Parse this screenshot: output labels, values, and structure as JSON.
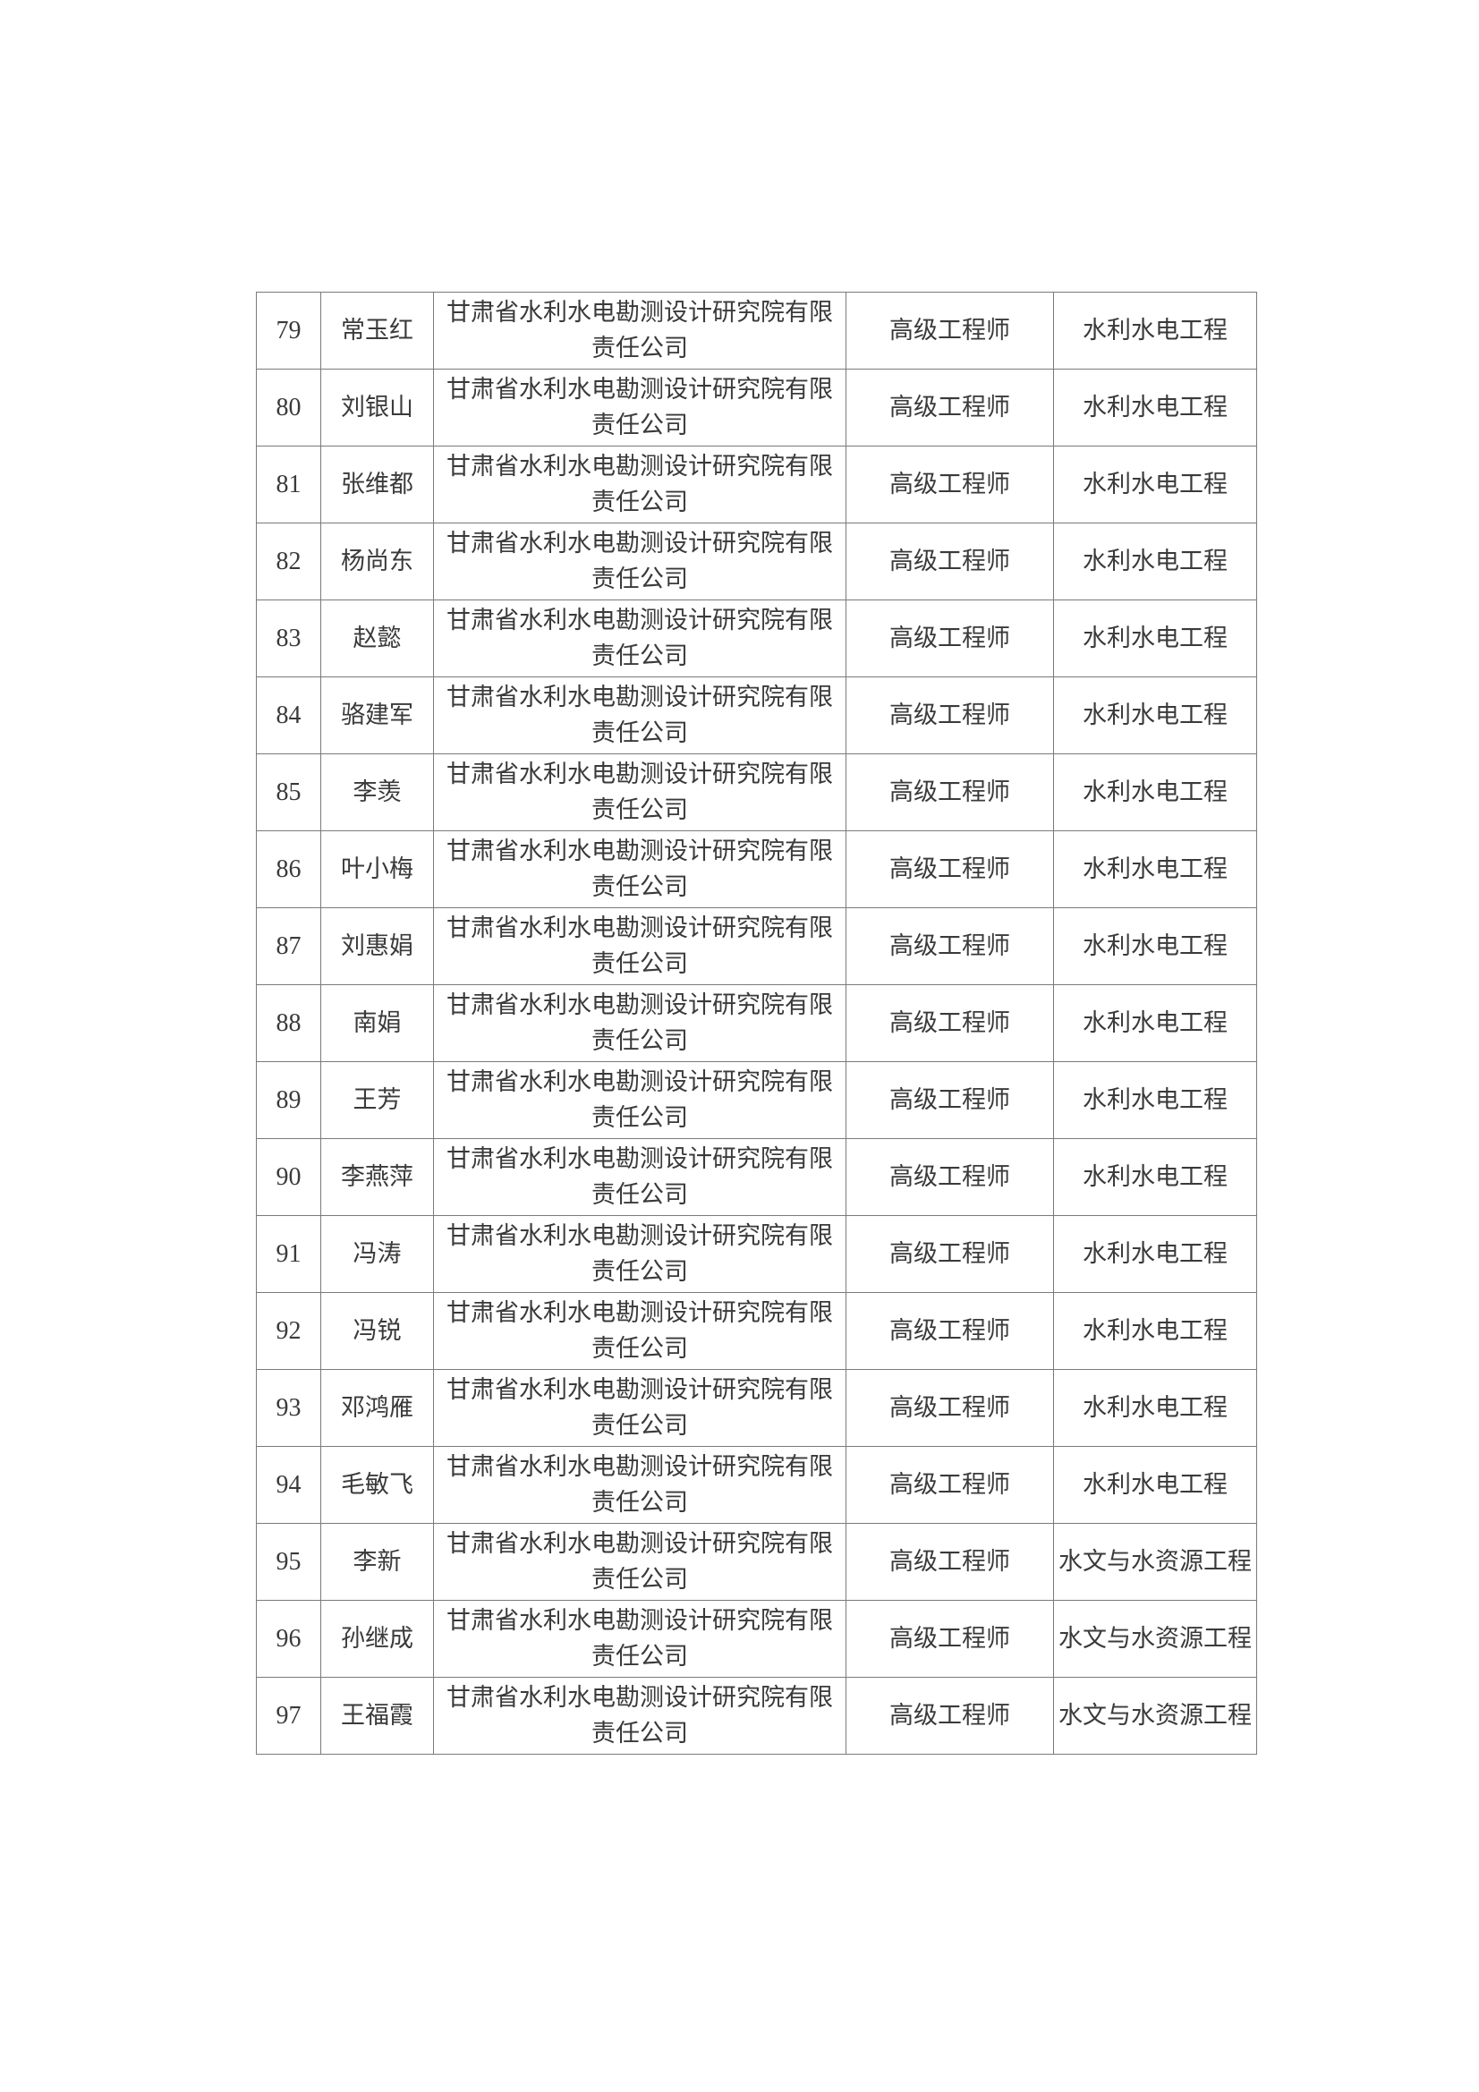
{
  "table": {
    "rows": [
      {
        "no": "79",
        "name": "常玉红",
        "org": "甘肃省水利水电勘测设计研究院有限责任公司",
        "title": "高级工程师",
        "major": "水利水电工程"
      },
      {
        "no": "80",
        "name": "刘银山",
        "org": "甘肃省水利水电勘测设计研究院有限责任公司",
        "title": "高级工程师",
        "major": "水利水电工程"
      },
      {
        "no": "81",
        "name": "张维都",
        "org": "甘肃省水利水电勘测设计研究院有限责任公司",
        "title": "高级工程师",
        "major": "水利水电工程"
      },
      {
        "no": "82",
        "name": "杨尚东",
        "org": "甘肃省水利水电勘测设计研究院有限责任公司",
        "title": "高级工程师",
        "major": "水利水电工程"
      },
      {
        "no": "83",
        "name": "赵懿",
        "org": "甘肃省水利水电勘测设计研究院有限责任公司",
        "title": "高级工程师",
        "major": "水利水电工程"
      },
      {
        "no": "84",
        "name": "骆建军",
        "org": "甘肃省水利水电勘测设计研究院有限责任公司",
        "title": "高级工程师",
        "major": "水利水电工程"
      },
      {
        "no": "85",
        "name": "李羡",
        "org": "甘肃省水利水电勘测设计研究院有限责任公司",
        "title": "高级工程师",
        "major": "水利水电工程"
      },
      {
        "no": "86",
        "name": "叶小梅",
        "org": "甘肃省水利水电勘测设计研究院有限责任公司",
        "title": "高级工程师",
        "major": "水利水电工程"
      },
      {
        "no": "87",
        "name": "刘惠娟",
        "org": "甘肃省水利水电勘测设计研究院有限责任公司",
        "title": "高级工程师",
        "major": "水利水电工程"
      },
      {
        "no": "88",
        "name": "南娟",
        "org": "甘肃省水利水电勘测设计研究院有限责任公司",
        "title": "高级工程师",
        "major": "水利水电工程"
      },
      {
        "no": "89",
        "name": "王芳",
        "org": "甘肃省水利水电勘测设计研究院有限责任公司",
        "title": "高级工程师",
        "major": "水利水电工程"
      },
      {
        "no": "90",
        "name": "李燕萍",
        "org": "甘肃省水利水电勘测设计研究院有限责任公司",
        "title": "高级工程师",
        "major": "水利水电工程"
      },
      {
        "no": "91",
        "name": "冯涛",
        "org": "甘肃省水利水电勘测设计研究院有限责任公司",
        "title": "高级工程师",
        "major": "水利水电工程"
      },
      {
        "no": "92",
        "name": "冯锐",
        "org": "甘肃省水利水电勘测设计研究院有限责任公司",
        "title": "高级工程师",
        "major": "水利水电工程"
      },
      {
        "no": "93",
        "name": "邓鸿雁",
        "org": "甘肃省水利水电勘测设计研究院有限责任公司",
        "title": "高级工程师",
        "major": "水利水电工程"
      },
      {
        "no": "94",
        "name": "毛敏飞",
        "org": "甘肃省水利水电勘测设计研究院有限责任公司",
        "title": "高级工程师",
        "major": "水利水电工程"
      },
      {
        "no": "95",
        "name": "李新",
        "org": "甘肃省水利水电勘测设计研究院有限责任公司",
        "title": "高级工程师",
        "major": "水文与水资源工程"
      },
      {
        "no": "96",
        "name": "孙继成",
        "org": "甘肃省水利水电勘测设计研究院有限责任公司",
        "title": "高级工程师",
        "major": "水文与水资源工程"
      },
      {
        "no": "97",
        "name": "王福霞",
        "org": "甘肃省水利水电勘测设计研究院有限责任公司",
        "title": "高级工程师",
        "major": "水文与水资源工程"
      }
    ]
  }
}
